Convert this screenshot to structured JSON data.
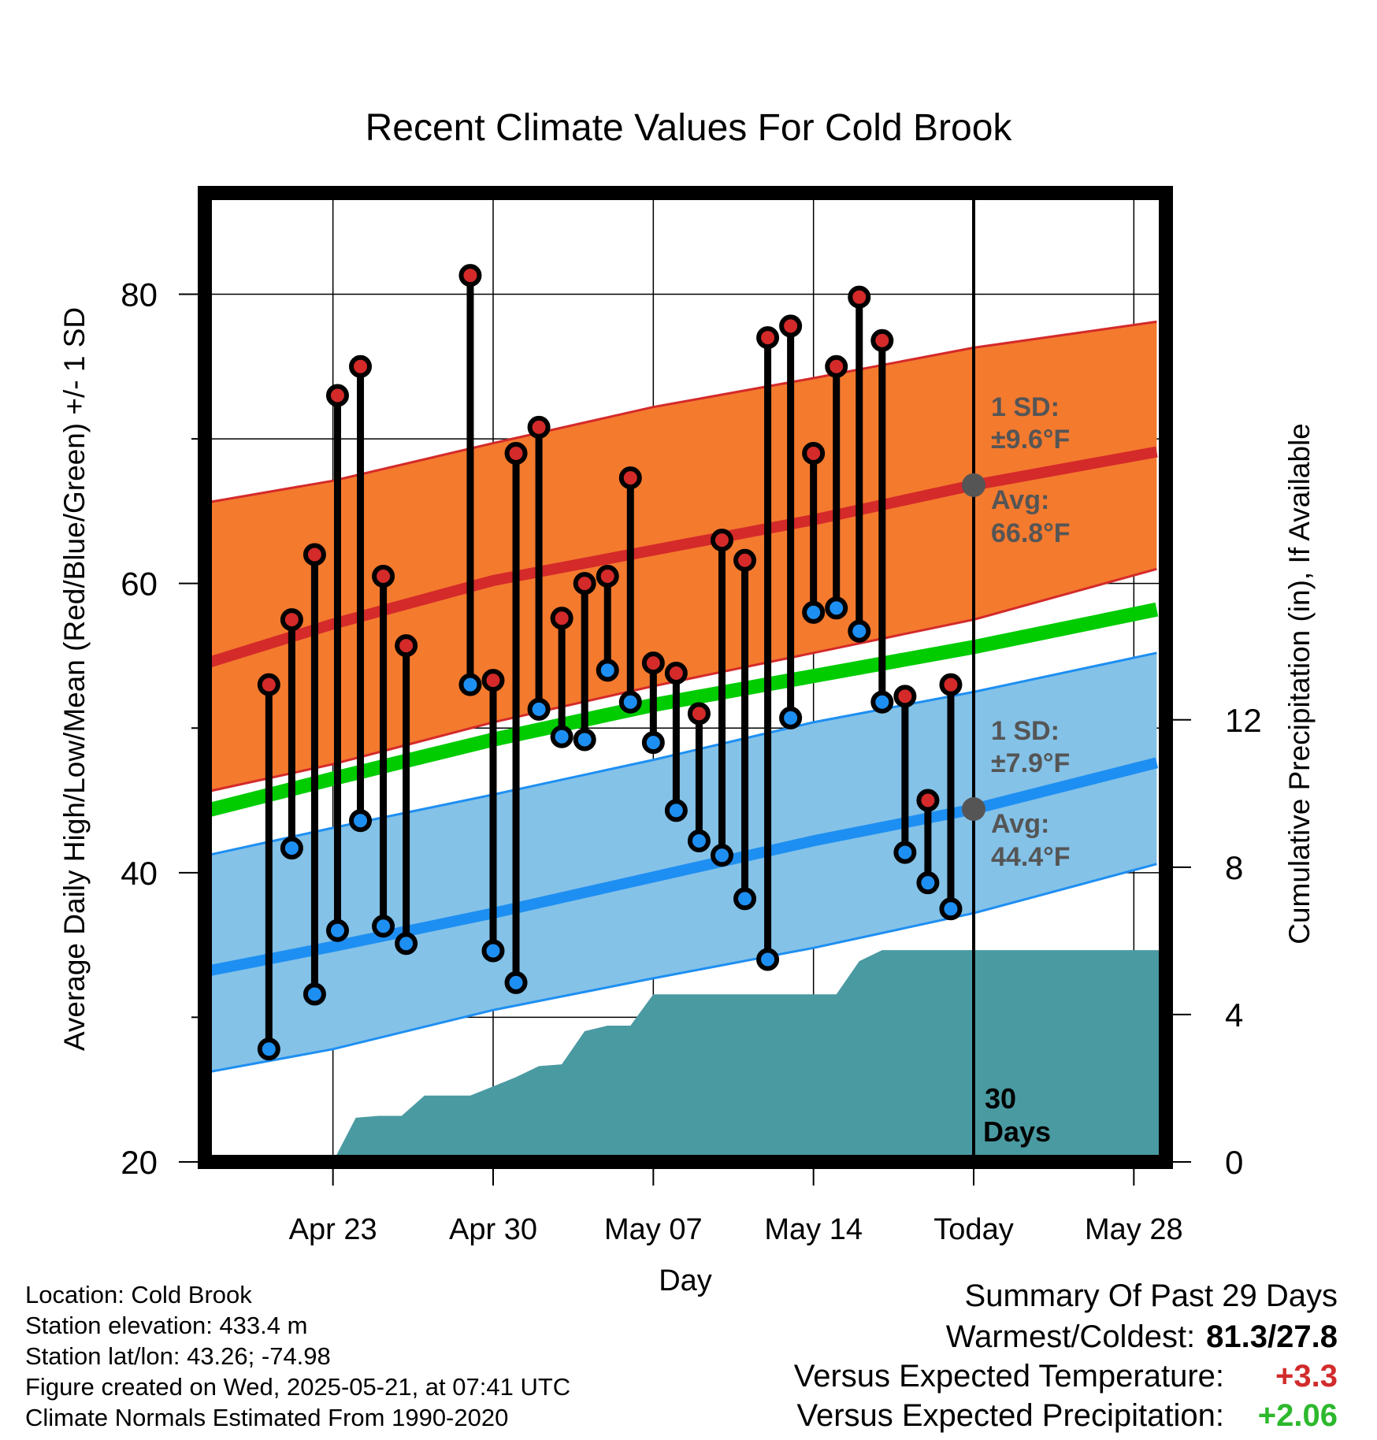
{
  "title": "Recent Climate Values For Cold Brook",
  "footer": {
    "location": "Location: Cold Brook",
    "elevation": "Station elevation: 433.4 m",
    "latlon": "Station lat/lon: 43.26; -74.98",
    "created": "Figure created on Wed, 2025-05-21, at 07:41 UTC",
    "normals": "Climate Normals Estimated From 1990-2020"
  },
  "summary": {
    "heading": "Summary Of Past 29 Days",
    "warm_cold_label": "Warmest/Coldest:",
    "warm_cold_value": "81.3/27.8",
    "temp_label": "Versus Expected Temperature:",
    "temp_value": "+3.3",
    "temp_color": "#d22b2b",
    "precip_label": "Versus Expected Precipitation:",
    "precip_value": "+2.06",
    "precip_color": "#2db82d"
  },
  "chart_data": {
    "type": "line",
    "xlabel": "Day",
    "ylabel": "Average Daily High/Low/Mean (Red/Blue/Green) +/- 1 SD",
    "y2label": "Cumulative Precipitation (in), If Available",
    "ylim": [
      20,
      87
    ],
    "y2lim": [
      0,
      26.3
    ],
    "yticks": [
      20,
      40,
      60,
      80
    ],
    "y2ticks": [
      0,
      4,
      8,
      12
    ],
    "xlim": [
      -31.6,
      10.4
    ],
    "xticks": [
      {
        "day": -26,
        "label": "Apr 23"
      },
      {
        "day": -19,
        "label": "Apr 30"
      },
      {
        "day": -12,
        "label": "May 07"
      },
      {
        "day": -5,
        "label": "May 14"
      },
      {
        "day": 2,
        "label": "Today"
      },
      {
        "day": 9,
        "label": "May 28"
      }
    ],
    "today_marker": {
      "day": 2,
      "label_line1": "30",
      "label_line2": "Days"
    },
    "normal_high": {
      "label_sd_line1": "1 SD:",
      "label_sd_line2": "±9.6°F",
      "label_avg_line1": "Avg:",
      "label_avg_line2": "66.8°F",
      "mean": [
        [
          -31.5,
          54.5
        ],
        [
          -26,
          57.2
        ],
        [
          -19,
          60.2
        ],
        [
          -12,
          62.3
        ],
        [
          -5,
          64.4
        ],
        [
          2,
          66.8
        ],
        [
          10,
          69.1
        ]
      ],
      "upper": [
        [
          -31.5,
          65.6
        ],
        [
          -26,
          67.1
        ],
        [
          -19,
          69.7
        ],
        [
          -12,
          72.2
        ],
        [
          -5,
          74.2
        ],
        [
          2,
          76.3
        ],
        [
          10,
          78.1
        ]
      ],
      "lower": [
        [
          -31.5,
          45.6
        ],
        [
          -26,
          47.5
        ],
        [
          -19,
          50.4
        ],
        [
          -12,
          52.9
        ],
        [
          -5,
          55.2
        ],
        [
          2,
          57.5
        ],
        [
          10,
          61.0
        ]
      ],
      "fill_color": "#f47a2e",
      "line_color": "#d42a2a"
    },
    "normal_low": {
      "label_sd_line1": "1 SD:",
      "label_sd_line2": "±7.9°F",
      "label_avg_line1": "Avg:",
      "label_avg_line2": "44.4°F",
      "mean": [
        [
          -31.5,
          33.2
        ],
        [
          -26,
          34.9
        ],
        [
          -19,
          37.2
        ],
        [
          -12,
          39.7
        ],
        [
          -5,
          42.2
        ],
        [
          2,
          44.4
        ],
        [
          10,
          47.6
        ]
      ],
      "upper": [
        [
          -31.5,
          41.2
        ],
        [
          -26,
          43.1
        ],
        [
          -19,
          45.4
        ],
        [
          -12,
          47.8
        ],
        [
          -5,
          50.4
        ],
        [
          2,
          52.5
        ],
        [
          10,
          55.2
        ]
      ],
      "lower": [
        [
          -31.5,
          26.2
        ],
        [
          -26,
          27.8
        ],
        [
          -19,
          30.5
        ],
        [
          -12,
          32.7
        ],
        [
          -5,
          34.8
        ],
        [
          2,
          37.2
        ],
        [
          10,
          40.6
        ]
      ],
      "fill_color": "#84c2e8",
      "line_color": "#1e8ff2"
    },
    "normal_mean": {
      "points": [
        [
          -31.5,
          44.3
        ],
        [
          -26,
          46.5
        ],
        [
          -19,
          49.2
        ],
        [
          -12,
          51.6
        ],
        [
          -5,
          53.6
        ],
        [
          2,
          55.6
        ],
        [
          10,
          58.2
        ]
      ],
      "color": "#00cc00"
    },
    "daily": [
      {
        "day": -28.8,
        "high": 53.0,
        "low": 27.8
      },
      {
        "day": -27.8,
        "high": 57.5,
        "low": 41.7
      },
      {
        "day": -26.8,
        "high": 62.0,
        "low": 31.6
      },
      {
        "day": -25.8,
        "high": 73.0,
        "low": 36.0
      },
      {
        "day": -24.8,
        "high": 75.0,
        "low": 43.6
      },
      {
        "day": -23.8,
        "high": 60.5,
        "low": 36.3
      },
      {
        "day": -22.8,
        "high": 55.7,
        "low": 35.1
      },
      {
        "day": -20.0,
        "high": 81.3,
        "low": 53.0
      },
      {
        "day": -19.0,
        "high": 53.3,
        "low": 34.6
      },
      {
        "day": -18.0,
        "high": 69.0,
        "low": 32.4
      },
      {
        "day": -17.0,
        "high": 70.8,
        "low": 51.3
      },
      {
        "day": -16.0,
        "high": 57.6,
        "low": 49.4
      },
      {
        "day": -15.0,
        "high": 60.0,
        "low": 49.2
      },
      {
        "day": -14.0,
        "high": 60.5,
        "low": 54.0
      },
      {
        "day": -13.0,
        "high": 67.3,
        "low": 51.8
      },
      {
        "day": -12.0,
        "high": 54.5,
        "low": 49.0
      },
      {
        "day": -11.0,
        "high": 53.8,
        "low": 44.3
      },
      {
        "day": -10.0,
        "high": 51.0,
        "low": 42.2
      },
      {
        "day": -9.0,
        "high": 63.0,
        "low": 41.2
      },
      {
        "day": -8.0,
        "high": 61.6,
        "low": 38.2
      },
      {
        "day": -7.0,
        "high": 77.0,
        "low": 34.0
      },
      {
        "day": -6.0,
        "high": 77.8,
        "low": 50.7
      },
      {
        "day": -5.0,
        "high": 69.0,
        "low": 58.0
      },
      {
        "day": -4.0,
        "high": 75.0,
        "low": 58.3
      },
      {
        "day": -3.0,
        "high": 79.8,
        "low": 56.7
      },
      {
        "day": -2.0,
        "high": 76.8,
        "low": 51.8
      },
      {
        "day": -1.0,
        "high": 52.2,
        "low": 41.4
      },
      {
        "day": 0.0,
        "high": 45.0,
        "low": 39.3
      },
      {
        "day": 1.0,
        "high": 53.0,
        "low": 37.5
      }
    ],
    "high_dot_color": "#d42a2a",
    "low_dot_color": "#1e8ff2",
    "precip": {
      "color": "#4a9aa2",
      "points": [
        [
          -26.0,
          0.0
        ],
        [
          -25.0,
          1.2
        ],
        [
          -24.0,
          1.25
        ],
        [
          -23.0,
          1.25
        ],
        [
          -22.0,
          1.8
        ],
        [
          -21.0,
          1.8
        ],
        [
          -20.0,
          1.8
        ],
        [
          -19.0,
          2.05
        ],
        [
          -18.0,
          2.3
        ],
        [
          -17.0,
          2.6
        ],
        [
          -16.0,
          2.65
        ],
        [
          -15.0,
          3.55
        ],
        [
          -14.0,
          3.7
        ],
        [
          -13.0,
          3.7
        ],
        [
          -12.0,
          4.55
        ],
        [
          -11.0,
          4.55
        ],
        [
          -10.0,
          4.55
        ],
        [
          -9.0,
          4.55
        ],
        [
          -8.0,
          4.55
        ],
        [
          -7.0,
          4.55
        ],
        [
          -6.0,
          4.55
        ],
        [
          -5.0,
          4.55
        ],
        [
          -4.0,
          4.55
        ],
        [
          -3.0,
          5.45
        ],
        [
          -2.0,
          5.75
        ],
        [
          -1.0,
          5.75
        ],
        [
          0.0,
          5.75
        ],
        [
          1.0,
          5.75
        ],
        [
          2.0,
          5.75
        ],
        [
          10.4,
          5.75
        ]
      ]
    },
    "grid": true
  }
}
